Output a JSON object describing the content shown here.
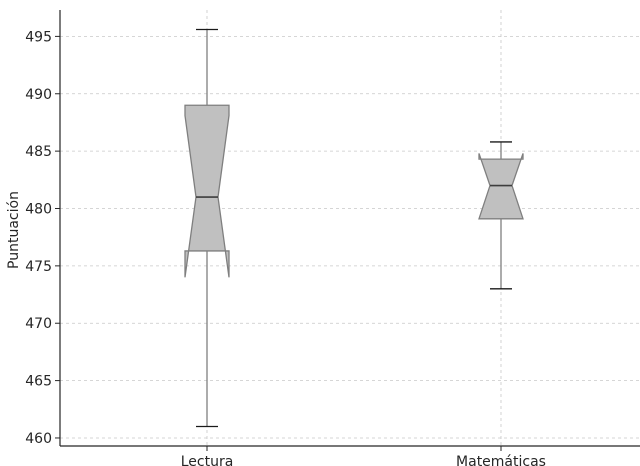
{
  "chart_data": {
    "type": "boxplot",
    "ylabel": "Puntuación",
    "xlabel": "",
    "title": "",
    "categories": [
      "Lectura",
      "Matemáticas"
    ],
    "y_ticks": [
      460,
      465,
      470,
      475,
      480,
      485,
      490,
      495
    ],
    "ylim": [
      459.3,
      497.3
    ],
    "grid": true,
    "notched": true,
    "boxes": [
      {
        "category": "Lectura",
        "whisker_low": 461.0,
        "q1": 476.3,
        "median": 481.0,
        "q3": 489.0,
        "whisker_high": 495.6,
        "notch_low": 474.0,
        "notch_high": 488.1
      },
      {
        "category": "Matemáticas",
        "whisker_low": 473.0,
        "q1": 479.1,
        "median": 482.0,
        "q3": 484.3,
        "whisker_high": 485.8,
        "notch_low": 479.1,
        "notch_high": 484.8
      }
    ],
    "colors": {
      "box_fill": "#c0c0c0",
      "box_stroke": "#7f7f7f",
      "median": "#3d3d3d",
      "whisker": "#7f7f7f",
      "cap": "#1a1a1a",
      "grid": "#c8c8c8",
      "axis": "#262626"
    }
  }
}
